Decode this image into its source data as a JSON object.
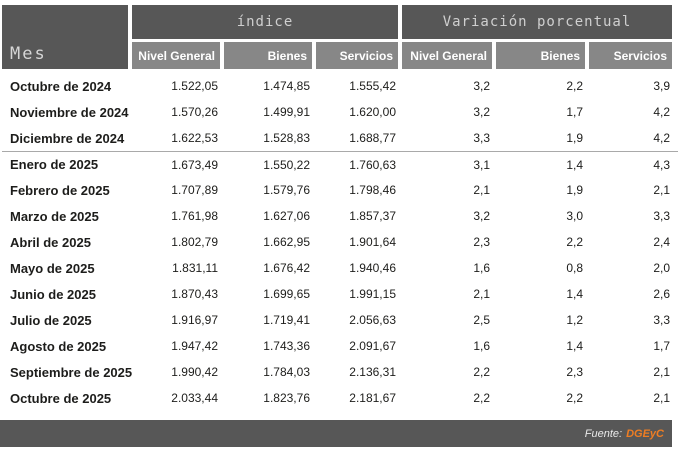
{
  "table": {
    "mes_header": "Mes",
    "group_headers": [
      {
        "label": "índice"
      },
      {
        "label": "Variación porcentual"
      }
    ],
    "sub_headers": [
      "Nivel General",
      "Bienes",
      "Servicios",
      "Nivel General",
      "Bienes",
      "Servicios"
    ],
    "rows": [
      {
        "mes": "Octubre de 2024",
        "indice": [
          "1.522,05",
          "1.474,85",
          "1.555,42"
        ],
        "variacion": [
          "3,2",
          "2,2",
          "3,9"
        ]
      },
      {
        "mes": "Noviembre de 2024",
        "indice": [
          "1.570,26",
          "1.499,91",
          "1.620,00"
        ],
        "variacion": [
          "3,2",
          "1,7",
          "4,2"
        ]
      },
      {
        "mes": "Diciembre de 2024",
        "indice": [
          "1.622,53",
          "1.528,83",
          "1.688,77"
        ],
        "variacion": [
          "3,3",
          "1,9",
          "4,2"
        ]
      },
      {
        "mes": "Enero de 2025",
        "indice": [
          "1.673,49",
          "1.550,22",
          "1.760,63"
        ],
        "variacion": [
          "3,1",
          "1,4",
          "4,3"
        ],
        "separator_before": true
      },
      {
        "mes": "Febrero de 2025",
        "indice": [
          "1.707,89",
          "1.579,76",
          "1.798,46"
        ],
        "variacion": [
          "2,1",
          "1,9",
          "2,1"
        ]
      },
      {
        "mes": "Marzo de 2025",
        "indice": [
          "1.761,98",
          "1.627,06",
          "1.857,37"
        ],
        "variacion": [
          "3,2",
          "3,0",
          "3,3"
        ]
      },
      {
        "mes": "Abril de 2025",
        "indice": [
          "1.802,79",
          "1.662,95",
          "1.901,64"
        ],
        "variacion": [
          "2,3",
          "2,2",
          "2,4"
        ]
      },
      {
        "mes": "Mayo de 2025",
        "indice": [
          "1.831,11",
          "1.676,42",
          "1.940,46"
        ],
        "variacion": [
          "1,6",
          "0,8",
          "2,0"
        ]
      },
      {
        "mes": "Junio de 2025",
        "indice": [
          "1.870,43",
          "1.699,65",
          "1.991,15"
        ],
        "variacion": [
          "2,1",
          "1,4",
          "2,6"
        ]
      },
      {
        "mes": "Julio de 2025",
        "indice": [
          "1.916,97",
          "1.719,41",
          "2.056,63"
        ],
        "variacion": [
          "2,5",
          "1,2",
          "3,3"
        ]
      },
      {
        "mes": "Agosto de 2025",
        "indice": [
          "1.947,42",
          "1.743,36",
          "2.091,67"
        ],
        "variacion": [
          "1,6",
          "1,4",
          "1,7"
        ]
      },
      {
        "mes": "Septiembre de 2025",
        "indice": [
          "1.990,42",
          "1.784,03",
          "2.136,31"
        ],
        "variacion": [
          "2,2",
          "2,3",
          "2,1"
        ]
      },
      {
        "mes": "Octubre de 2025",
        "indice": [
          "2.033,44",
          "1.823,76",
          "2.181,67"
        ],
        "variacion": [
          "2,2",
          "2,2",
          "2,1"
        ]
      }
    ]
  },
  "footer": {
    "source_label": "Fuente:",
    "source_value": "DGEyC"
  },
  "colors": {
    "header_dark": "#575757",
    "header_light": "#878787",
    "accent_orange": "#ee7d23",
    "divider_gray": "#a9a9a9",
    "body_text": "#1d1d1b"
  },
  "chart_data": {
    "type": "table",
    "title": "",
    "column_groups": [
      "índice",
      "Variación porcentual"
    ],
    "columns": [
      "Mes",
      "índice Nivel General",
      "índice Bienes",
      "índice Servicios",
      "Variación Nivel General",
      "Variación Bienes",
      "Variación Servicios"
    ],
    "rows": [
      [
        "Octubre de 2024",
        1522.05,
        1474.85,
        1555.42,
        3.2,
        2.2,
        3.9
      ],
      [
        "Noviembre de 2024",
        1570.26,
        1499.91,
        1620.0,
        3.2,
        1.7,
        4.2
      ],
      [
        "Diciembre de 2024",
        1622.53,
        1528.83,
        1688.77,
        3.3,
        1.9,
        4.2
      ],
      [
        "Enero de 2025",
        1673.49,
        1550.22,
        1760.63,
        3.1,
        1.4,
        4.3
      ],
      [
        "Febrero de 2025",
        1707.89,
        1579.76,
        1798.46,
        2.1,
        1.9,
        2.1
      ],
      [
        "Marzo de 2025",
        1761.98,
        1627.06,
        1857.37,
        3.2,
        3.0,
        3.3
      ],
      [
        "Abril de 2025",
        1802.79,
        1662.95,
        1901.64,
        2.3,
        2.2,
        2.4
      ],
      [
        "Mayo de 2025",
        1831.11,
        1676.42,
        1940.46,
        1.6,
        0.8,
        2.0
      ],
      [
        "Junio de 2025",
        1870.43,
        1699.65,
        1991.15,
        2.1,
        1.4,
        2.6
      ],
      [
        "Julio de 2025",
        1916.97,
        1719.41,
        2056.63,
        2.5,
        1.2,
        3.3
      ],
      [
        "Agosto de 2025",
        1947.42,
        1743.36,
        2091.67,
        1.6,
        1.4,
        1.7
      ],
      [
        "Septiembre de 2025",
        1990.42,
        1784.03,
        2136.31,
        2.2,
        2.3,
        2.1
      ],
      [
        "Octubre de 2025",
        2033.44,
        1823.76,
        2181.67,
        2.2,
        2.2,
        2.1
      ]
    ],
    "source": "Fuente: DGEyC"
  }
}
